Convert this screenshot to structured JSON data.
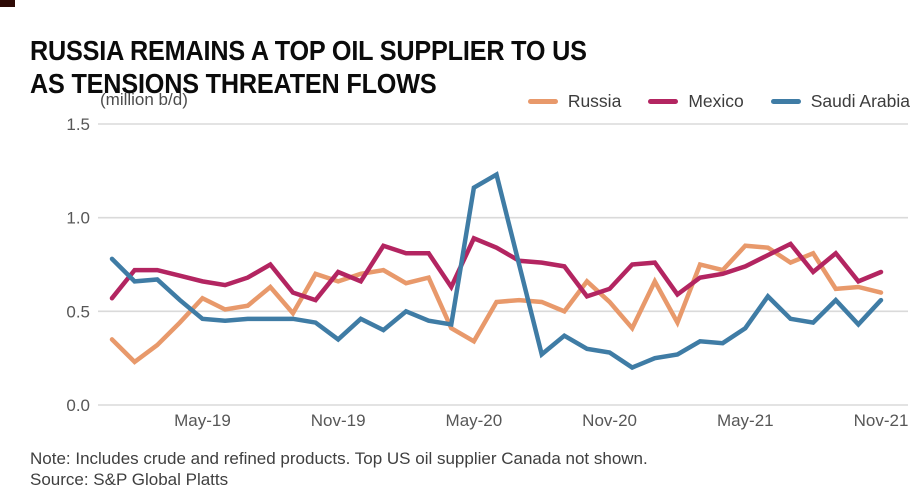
{
  "header": {
    "title": "RUSSIA REMAINS A TOP OIL SUPPLIER TO US\nAS TENSIONS THREATEN FLOWS",
    "accent_mark_color": "#2e0a06"
  },
  "chart_data": {
    "type": "line",
    "title": "RUSSIA REMAINS A TOP OIL SUPPLIER TO US AS TENSIONS THREATEN FLOWS",
    "unit_label": "(million b/d)",
    "ylabel": "million b/d",
    "ylim": [
      0,
      1.5
    ],
    "y_ticks": [
      0.0,
      0.5,
      1.0,
      1.5
    ],
    "grid": true,
    "legend_position": "top-right",
    "x": [
      "Jan-19",
      "Feb-19",
      "Mar-19",
      "Apr-19",
      "May-19",
      "Jun-19",
      "Jul-19",
      "Aug-19",
      "Sep-19",
      "Oct-19",
      "Nov-19",
      "Dec-19",
      "Jan-20",
      "Feb-20",
      "Mar-20",
      "Apr-20",
      "May-20",
      "Jun-20",
      "Jul-20",
      "Aug-20",
      "Sep-20",
      "Oct-20",
      "Nov-20",
      "Dec-20",
      "Jan-21",
      "Feb-21",
      "Mar-21",
      "Apr-21",
      "May-21",
      "Jun-21",
      "Jul-21",
      "Aug-21",
      "Sep-21",
      "Oct-21",
      "Nov-21"
    ],
    "x_tick_labels": [
      "May-19",
      "Nov-19",
      "May-20",
      "Nov-20",
      "May-21",
      "Nov-21"
    ],
    "x_tick_indices": [
      4,
      10,
      16,
      22,
      28,
      34
    ],
    "series": [
      {
        "name": "Russia",
        "color": "#e8996b",
        "values": [
          0.35,
          0.23,
          0.32,
          0.44,
          0.57,
          0.51,
          0.53,
          0.63,
          0.49,
          0.7,
          0.66,
          0.7,
          0.72,
          0.65,
          0.68,
          0.41,
          0.34,
          0.55,
          0.56,
          0.55,
          0.5,
          0.66,
          0.55,
          0.41,
          0.66,
          0.44,
          0.75,
          0.72,
          0.85,
          0.84,
          0.76,
          0.81,
          0.62,
          0.63,
          0.6
        ]
      },
      {
        "name": "Mexico",
        "color": "#b32561",
        "values": [
          0.57,
          0.72,
          0.72,
          0.69,
          0.66,
          0.64,
          0.68,
          0.75,
          0.6,
          0.56,
          0.71,
          0.66,
          0.85,
          0.81,
          0.81,
          0.63,
          0.89,
          0.84,
          0.77,
          0.76,
          0.74,
          0.58,
          0.62,
          0.75,
          0.76,
          0.59,
          0.68,
          0.7,
          0.74,
          0.8,
          0.86,
          0.71,
          0.81,
          0.66,
          0.71
        ]
      },
      {
        "name": "Saudi Arabia",
        "color": "#3f7ca5",
        "values": [
          0.78,
          0.66,
          0.67,
          0.56,
          0.46,
          0.45,
          0.46,
          0.46,
          0.46,
          0.44,
          0.35,
          0.46,
          0.4,
          0.5,
          0.45,
          0.43,
          1.16,
          1.23,
          0.75,
          0.27,
          0.37,
          0.3,
          0.28,
          0.2,
          0.25,
          0.27,
          0.34,
          0.33,
          0.41,
          0.58,
          0.46,
          0.44,
          0.56,
          0.43,
          0.56
        ]
      }
    ],
    "gridline_color": "#dadada"
  },
  "footer": {
    "note": "Note: Includes crude and refined products. Top US oil supplier Canada not shown.",
    "source": "Source: S&P Global Platts"
  }
}
